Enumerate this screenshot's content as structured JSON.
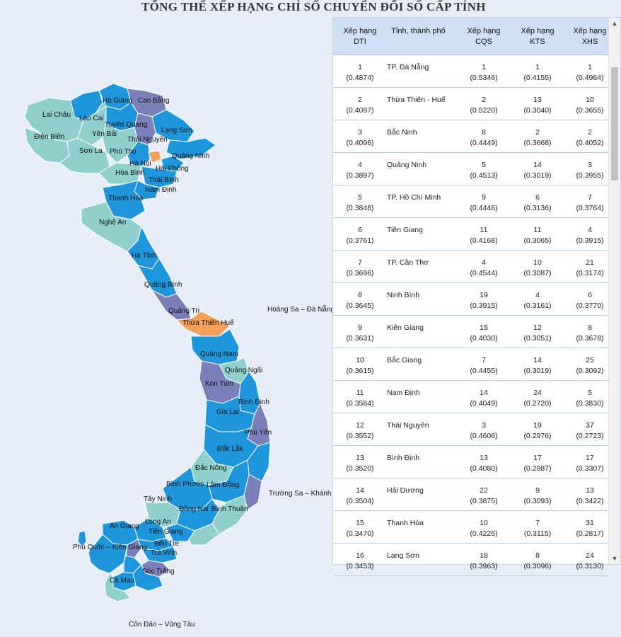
{
  "title": "TỔNG THỂ XẾP HẠNG CHỈ SỐ CHUYỂN ĐỔI SỐ CẤP TỈNH",
  "colors": {
    "teal": "#8fcfcc",
    "blue": "#1e96dc",
    "purple": "#7b7fba",
    "orange": "#f5a05a",
    "header_bg": "#cfe0f6"
  },
  "map_labels": {
    "ha_giang": "Hà Giang",
    "cao_bang": "Cao Bằng",
    "lai_chau": "Lai Châu",
    "lao_cai": "Lào Cai",
    "tuyen_quang": "Tuyên Quang",
    "yen_bai": "Yên Bái",
    "lang_son": "Lạng Sơn",
    "dien_bien": "Điện Biên",
    "thai_nguyen": "Thái Nguyên",
    "son_la": "Sơn La",
    "phu_tho": "Phú Thọ",
    "quang_ninh": "Quảng Ninh",
    "ha_noi": "Hà Nội",
    "hai_phong": "Hải Phòng",
    "hoa_binh": "Hòa Bình",
    "thai_binh": "Thái Bình",
    "nam_dinh": "Nam Định",
    "thanh_hoa": "Thanh Hóa",
    "nghe_an": "Nghệ An",
    "ha_tinh": "Hà Tĩnh",
    "quang_binh": "Quảng Bình",
    "quang_tri": "Quảng Trị",
    "thua_thien_hue": "Thừa Thiên Huế",
    "quang_nam": "Quảng Nam",
    "quang_ngai": "Quảng Ngãi",
    "kon_tum": "Kon Tum",
    "binh_dinh": "Bình Định",
    "gia_lai": "Gia Lai",
    "phu_yen": "Phú Yên",
    "dak_lak": "Đắk Lắk",
    "dak_nong": "Đắc Nông",
    "binh_phuoc": "Bình Phước",
    "lam_dong": "Lâm Đồng",
    "tay_ninh": "Tây Ninh",
    "dong_nai": "Đồng Nai",
    "binh_thuan": "Bình Thuận",
    "an_giang": "An Giang",
    "long_an": "Long An",
    "tien_giang": "Tiền Giang",
    "phu_quoc": "Phú Quốc – Kiên Giang",
    "ben_tre": "Bến Tre",
    "tra_vinh": "Trà Vinh",
    "soc_trang": "Sóc Trăng",
    "ca_mau": "Cà Mau",
    "hoang_sa": "Hoàng Sa – Đà Nẵng",
    "truong_sa": "Trường Sa – Khánh Hòa",
    "con_dao": "Côn Đảo – Vũng Tàu"
  },
  "table": {
    "headers": {
      "dti": "Xếp hạng DTI",
      "province": "Tỉnh, thành phố",
      "cqs": "Xếp hạng CQS",
      "kts": "Xếp hạng KTS",
      "xhs": "Xếp hạng XHS"
    },
    "rows": [
      {
        "dti_rank": "1",
        "dti_score": "(0.4874)",
        "province": "TP. Đà Nẵng",
        "cqs_rank": "1",
        "cqs_score": "(0.5346)",
        "kts_rank": "1",
        "kts_score": "(0.4155)",
        "xhs_rank": "1",
        "xhs_score": "(0.4964)"
      },
      {
        "dti_rank": "2",
        "dti_score": "(0.4097)",
        "province": "Thừa Thiên - Huế",
        "cqs_rank": "2",
        "cqs_score": "(0.5220)",
        "kts_rank": "13",
        "kts_score": "(0.3040)",
        "xhs_rank": "10",
        "xhs_score": "(0.3655)"
      },
      {
        "dti_rank": "3",
        "dti_score": "(0.4096)",
        "province": "Bắc Ninh",
        "cqs_rank": "8",
        "cqs_score": "(0.4449)",
        "kts_rank": "2",
        "kts_score": "(0.3668)",
        "xhs_rank": "2",
        "xhs_score": "(0.4052)"
      },
      {
        "dti_rank": "4",
        "dti_score": "(0.3897)",
        "province": "Quảng Ninh",
        "cqs_rank": "5",
        "cqs_score": "(0.4513)",
        "kts_rank": "14",
        "kts_score": "(0.3019)",
        "xhs_rank": "3",
        "xhs_score": "(0.3955)"
      },
      {
        "dti_rank": "5",
        "dti_score": "(0.3848)",
        "province": "TP. Hồ Chí Minh",
        "cqs_rank": "9",
        "cqs_score": "(0.4446)",
        "kts_rank": "6",
        "kts_score": "(0.3136)",
        "xhs_rank": "7",
        "xhs_score": "(0.3764)"
      },
      {
        "dti_rank": "6",
        "dti_score": "(0.3761)",
        "province": "Tiền Giang",
        "cqs_rank": "11",
        "cqs_score": "(0.4168)",
        "kts_rank": "11",
        "kts_score": "(0.3065)",
        "xhs_rank": "4",
        "xhs_score": "(0.3915)"
      },
      {
        "dti_rank": "7",
        "dti_score": "(0.3696)",
        "province": "TP. Cần Thơ",
        "cqs_rank": "4",
        "cqs_score": "(0.4544)",
        "kts_rank": "10",
        "kts_score": "(0.3087)",
        "xhs_rank": "21",
        "xhs_score": "(0.3174)"
      },
      {
        "dti_rank": "8",
        "dti_score": "(0.3645)",
        "province": "Ninh Bình",
        "cqs_rank": "19",
        "cqs_score": "(0.3915)",
        "kts_rank": "4",
        "kts_score": "(0.3161)",
        "xhs_rank": "6",
        "xhs_score": "(0.3770)"
      },
      {
        "dti_rank": "9",
        "dti_score": "(0.3631)",
        "province": "Kiên Giang",
        "cqs_rank": "15",
        "cqs_score": "(0.4030)",
        "kts_rank": "12",
        "kts_score": "(0.3051)",
        "xhs_rank": "8",
        "xhs_score": "(0.3678)"
      },
      {
        "dti_rank": "10",
        "dti_score": "(0.3615)",
        "province": "Bắc Giang",
        "cqs_rank": "7",
        "cqs_score": "(0.4455)",
        "kts_rank": "14",
        "kts_score": "(0.3019)",
        "xhs_rank": "25",
        "xhs_score": "(0.3092)"
      },
      {
        "dti_rank": "11",
        "dti_score": "(0.3584)",
        "province": "Nam Định",
        "cqs_rank": "14",
        "cqs_score": "(0.4049)",
        "kts_rank": "24",
        "kts_score": "(0.2720)",
        "xhs_rank": "5",
        "xhs_score": "(0.3830)"
      },
      {
        "dti_rank": "12",
        "dti_score": "(0.3552)",
        "province": "Thái Nguyên",
        "cqs_rank": "3",
        "cqs_score": "(0.4606)",
        "kts_rank": "19",
        "kts_score": "(0.2976)",
        "xhs_rank": "37",
        "xhs_score": "(0.2723)"
      },
      {
        "dti_rank": "13",
        "dti_score": "(0.3520)",
        "province": "Bình Định",
        "cqs_rank": "13",
        "cqs_score": "(0.4080)",
        "kts_rank": "17",
        "kts_score": "(0.2987)",
        "xhs_rank": "17",
        "xhs_score": "(0.3307)"
      },
      {
        "dti_rank": "14",
        "dti_score": "(0.3504)",
        "province": "Hải Dương",
        "cqs_rank": "22",
        "cqs_score": "(0.3875)",
        "kts_rank": "9",
        "kts_score": "(0.3093)",
        "xhs_rank": "13",
        "xhs_score": "(0.3422)"
      },
      {
        "dti_rank": "15",
        "dti_score": "(0.3470)",
        "province": "Thanh Hóa",
        "cqs_rank": "10",
        "cqs_score": "(0.4226)",
        "kts_rank": "7",
        "kts_score": "(0.3115)",
        "xhs_rank": "31",
        "xhs_score": "(0.2817)"
      },
      {
        "dti_rank": "16",
        "dti_score": "(0.3453)",
        "province": "Lạng Sơn",
        "cqs_rank": "18",
        "cqs_score": "(0.3963)",
        "kts_rank": "8",
        "kts_score": "(0.3096)",
        "xhs_rank": "24",
        "xhs_score": "(0.3130)"
      }
    ]
  },
  "scroll": {
    "up_icon": "▲",
    "down_icon": "▼"
  }
}
